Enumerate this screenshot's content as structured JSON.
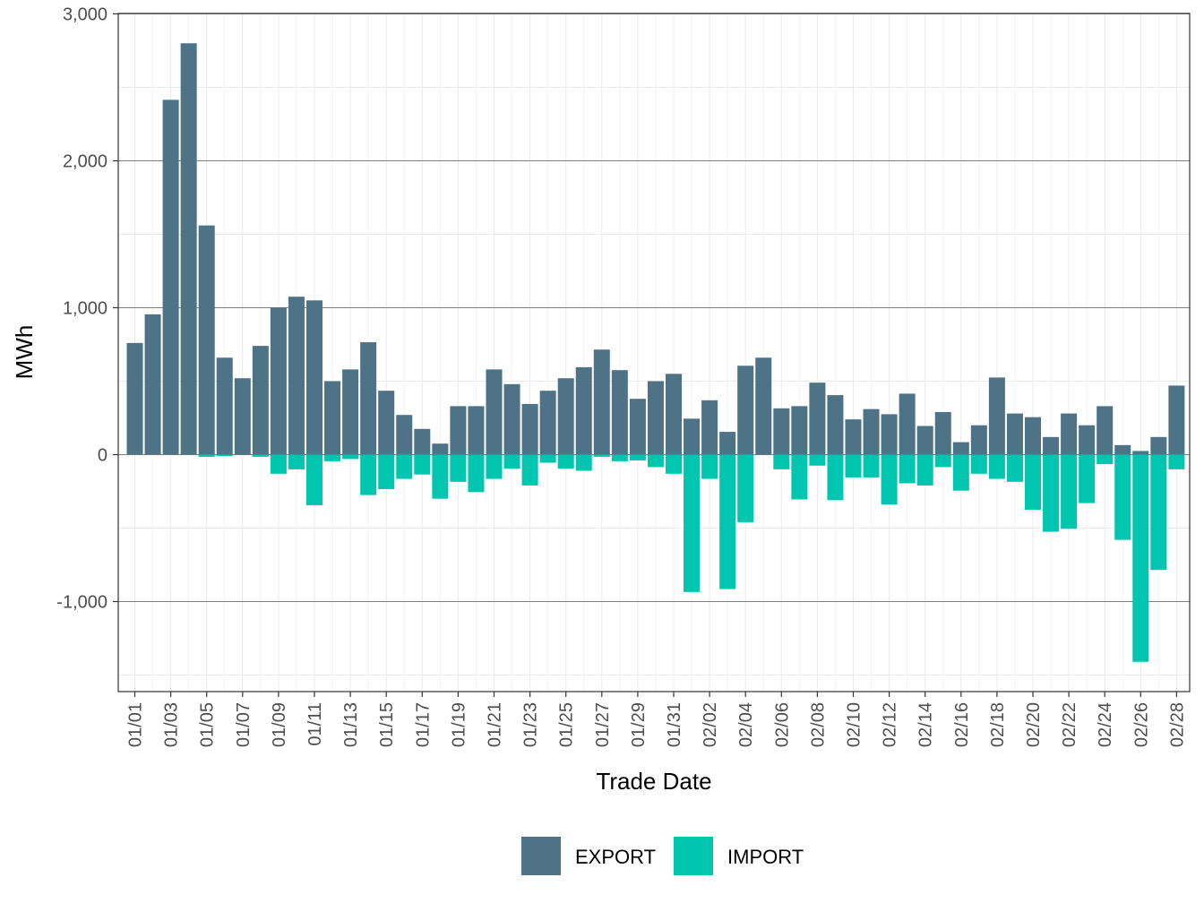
{
  "chart_data": {
    "type": "bar",
    "stacked": true,
    "xlabel": "Trade Date",
    "ylabel": "MWh",
    "ylim": [
      -1600,
      3000
    ],
    "yticks": [
      -1000,
      0,
      1000,
      2000,
      3000
    ],
    "ytick_labels": [
      "-1,000",
      "0",
      "1,000",
      "2,000",
      "3,000"
    ],
    "legend_position": "bottom",
    "categories": [
      "01/01",
      "01/02",
      "01/03",
      "01/04",
      "01/05",
      "01/06",
      "01/07",
      "01/08",
      "01/09",
      "01/10",
      "01/11",
      "01/12",
      "01/13",
      "01/14",
      "01/15",
      "01/16",
      "01/17",
      "01/18",
      "01/19",
      "01/20",
      "01/21",
      "01/22",
      "01/23",
      "01/24",
      "01/25",
      "01/26",
      "01/27",
      "01/28",
      "01/29",
      "01/30",
      "01/31",
      "02/01",
      "02/02",
      "02/03",
      "02/04",
      "02/05",
      "02/06",
      "02/07",
      "02/08",
      "02/09",
      "02/10",
      "02/11",
      "02/12",
      "02/13",
      "02/14",
      "02/15",
      "02/16",
      "02/17",
      "02/18",
      "02/19",
      "02/20",
      "02/21",
      "02/22",
      "02/23",
      "02/24",
      "02/25",
      "02/26",
      "02/27",
      "02/28"
    ],
    "xtick_labels": [
      "01/01",
      "01/03",
      "01/05",
      "01/07",
      "01/09",
      "01/11",
      "01/13",
      "01/15",
      "01/17",
      "01/19",
      "01/21",
      "01/23",
      "01/25",
      "01/27",
      "01/29",
      "01/31",
      "02/02",
      "02/04",
      "02/06",
      "02/08",
      "02/10",
      "02/12",
      "02/14",
      "02/16",
      "02/18",
      "02/20",
      "02/22",
      "02/24",
      "02/26",
      "02/28"
    ],
    "series": [
      {
        "name": "EXPORT",
        "color": "#4E7286",
        "values": [
          760,
          955,
          2415,
          2800,
          1560,
          660,
          520,
          740,
          1000,
          1075,
          1050,
          500,
          580,
          765,
          435,
          270,
          175,
          75,
          330,
          330,
          580,
          480,
          345,
          435,
          520,
          595,
          715,
          575,
          380,
          500,
          550,
          245,
          370,
          155,
          605,
          660,
          315,
          330,
          490,
          405,
          240,
          310,
          275,
          415,
          195,
          290,
          85,
          200,
          525,
          280,
          255,
          120,
          280,
          200,
          330,
          65,
          25,
          120,
          470
        ]
      },
      {
        "name": "IMPORT",
        "color": "#00C6B0",
        "values": [
          0,
          0,
          0,
          0,
          -15,
          -10,
          0,
          -15,
          -130,
          -100,
          -345,
          -45,
          -30,
          -275,
          -235,
          -165,
          -135,
          -300,
          -185,
          -255,
          -165,
          -95,
          -210,
          -55,
          -95,
          -110,
          -15,
          -45,
          -40,
          -85,
          -130,
          -935,
          -165,
          -915,
          -460,
          0,
          -100,
          -305,
          -75,
          -310,
          -155,
          -155,
          -340,
          -195,
          -210,
          -85,
          -245,
          -130,
          -165,
          -185,
          -375,
          -525,
          -505,
          -330,
          -65,
          -580,
          -1410,
          -785,
          -100
        ]
      }
    ]
  }
}
